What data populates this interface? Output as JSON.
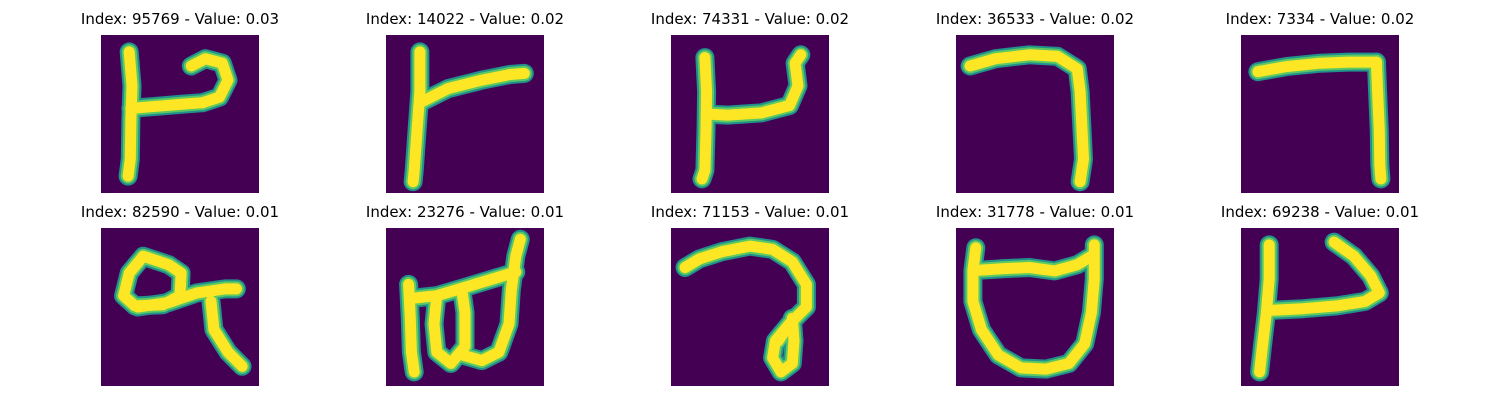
{
  "colors": {
    "background": "#440154",
    "stroke_edge": "#21918c",
    "stroke_mid": "#5ec962",
    "stroke_core": "#fde725"
  },
  "samples": [
    {
      "title": "Index: 95769 - Value: 0.03"
    },
    {
      "title": "Index: 14022 - Value: 0.02"
    },
    {
      "title": "Index: 74331 - Value: 0.02"
    },
    {
      "title": "Index: 36533 - Value: 0.02"
    },
    {
      "title": "Index: 7334 - Value: 0.02"
    },
    {
      "title": "Index: 82590 - Value: 0.01"
    },
    {
      "title": "Index: 23276 - Value: 0.01"
    },
    {
      "title": "Index: 71153 - Value: 0.01"
    },
    {
      "title": "Index: 31778 - Value: 0.01"
    },
    {
      "title": "Index: 69238 - Value: 0.01"
    }
  ]
}
